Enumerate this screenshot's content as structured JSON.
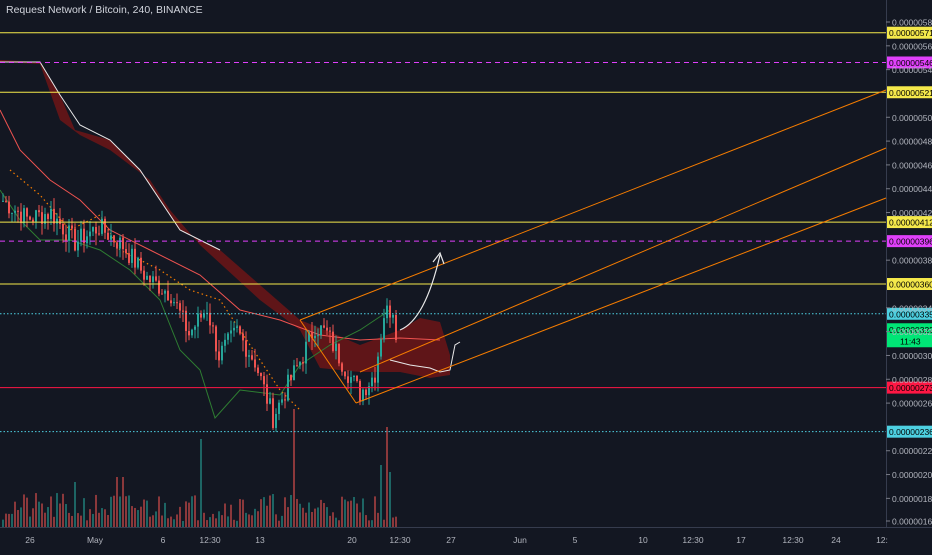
{
  "header": {
    "title": "Request Network / Bitcoin, 240, BINANCE"
  },
  "colors": {
    "background": "#131722",
    "up": "#26a69a",
    "down": "#ef5350",
    "yellow_line": "#f5e94b",
    "magenta_line": "#e040fb",
    "red_line": "#ff1744",
    "cyan_line": "#4dd0e1",
    "channel": "#f57c00",
    "cloud": "#7a1515",
    "current_price_tag": "#00e676"
  },
  "chart_data": {
    "type": "candlestick",
    "ylim": [
      1.6e-06,
      5.9e-06
    ],
    "x_ticks": [
      "26",
      "May",
      "6",
      "12:30",
      "13",
      "20",
      "12:30",
      "27",
      "Jun",
      "5",
      "10",
      "12:30",
      "17",
      "12:30",
      "24",
      "12:"
    ],
    "y_ticks": [
      "0.00000580",
      "0.00000560",
      "0.00000540",
      "0.00000500",
      "0.00000480",
      "0.00000460",
      "0.00000440",
      "0.00000420",
      "0.00000380",
      "0.00000340",
      "0.00000320",
      "0.00000300",
      "0.00000280",
      "0.00000260",
      "0.00000220",
      "0.00000200",
      "0.00000180",
      "0.00000161"
    ],
    "horizontal_levels": [
      {
        "value": 5.71e-06,
        "label": "0.00000571",
        "style": "solid",
        "color": "#f5e94b"
      },
      {
        "value": 5.46e-06,
        "label": "0.00000546",
        "style": "dashed",
        "color": "#e040fb"
      },
      {
        "value": 5.21e-06,
        "label": "0.00000521",
        "style": "solid",
        "color": "#f5e94b"
      },
      {
        "value": 4.12e-06,
        "label": "0.00000412",
        "style": "solid",
        "color": "#f5e94b"
      },
      {
        "value": 3.96e-06,
        "label": "0.00000396",
        "style": "dashed",
        "color": "#e040fb"
      },
      {
        "value": 3.6e-06,
        "label": "0.00000360",
        "style": "solid",
        "color": "#f5e94b"
      },
      {
        "value": 3.35e-06,
        "label": "0.00000335",
        "style": "dotted",
        "color": "#4dd0e1"
      },
      {
        "value": 2.73e-06,
        "label": "0.00000273",
        "style": "solid",
        "color": "#ff1744"
      },
      {
        "value": 2.36e-06,
        "label": "0.00000236",
        "style": "dotted",
        "color": "#4dd0e1"
      }
    ],
    "current_price": {
      "value": 3.22e-06,
      "label": "0.00000322",
      "countdown": "11:43"
    }
  }
}
